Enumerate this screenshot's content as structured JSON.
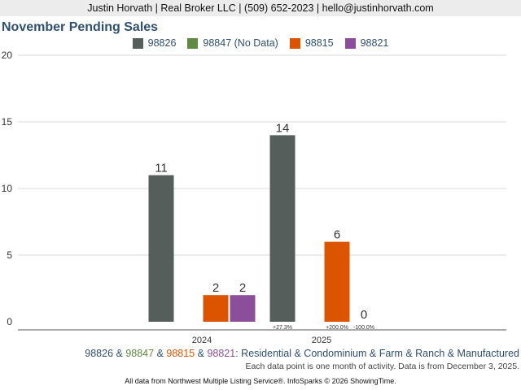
{
  "header": {
    "contact": "Justin Horvath | Real Broker LLC | (509) 652-2023 | hello@justinhorvath.com"
  },
  "colors": {
    "c98826": "#555e5a",
    "c98847": "#5e8a42",
    "c98815": "#dd5400",
    "c98821": "#8b4e9a",
    "title": "#2f4f6f"
  },
  "footer": {
    "zips": [
      "98826",
      "98847",
      "98815",
      "98821"
    ],
    "sep1": " & ",
    "sep2": " & ",
    "sep3": " & ",
    "property_types": ": Residential & Condominium & Farm & Ranch & Manufactured",
    "note": "Each data point is one month of activity. Data is from December 3, 2025.",
    "source": "All data from Northwest Multiple Listing Service®. InfoSparks © 2026 ShowingTime."
  },
  "chart_data": {
    "type": "bar",
    "title": "November Pending Sales",
    "categories": [
      "2024",
      "2025"
    ],
    "ylim": [
      0,
      20
    ],
    "yticks": [
      0,
      5,
      10,
      15,
      20
    ],
    "grid": true,
    "legend_position": "top",
    "series": [
      {
        "name": "98826",
        "label": "98826",
        "color": "#555e5a",
        "values": [
          11,
          14
        ],
        "changes": [
          null,
          "+27.3%"
        ]
      },
      {
        "name": "98847",
        "label": "98847 (No Data)",
        "color": "#5e8a42",
        "values": [
          null,
          null
        ],
        "changes": [
          null,
          null
        ]
      },
      {
        "name": "98815",
        "label": "98815",
        "color": "#dd5400",
        "values": [
          2,
          6
        ],
        "changes": [
          null,
          "+200.0%"
        ]
      },
      {
        "name": "98821",
        "label": "98821",
        "color": "#8b4e9a",
        "values": [
          2,
          0
        ],
        "changes": [
          null,
          "-100.0%"
        ]
      }
    ]
  }
}
